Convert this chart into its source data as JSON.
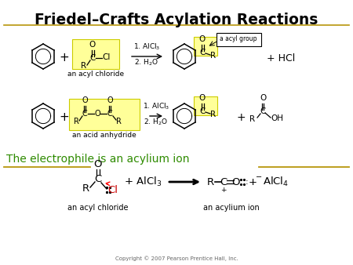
{
  "title": "Friedel–Crafts Acylation Reactions",
  "title_color": "#000000",
  "title_fontsize": 13.5,
  "bg_color": "#ffffff",
  "green_text": "The electrophile is an acylium ion",
  "green_color": "#2e8b00",
  "green_fontsize": 10,
  "yellow_fill": "#ffff99",
  "yellow_border": "#cccc00",
  "copyright": "Copyright © 2007 Pearson Prentice Hall, Inc.",
  "gold_line_color": "#b8960c",
  "fs_small": 6.5,
  "fs_med": 7.5,
  "fs_large": 9.5
}
